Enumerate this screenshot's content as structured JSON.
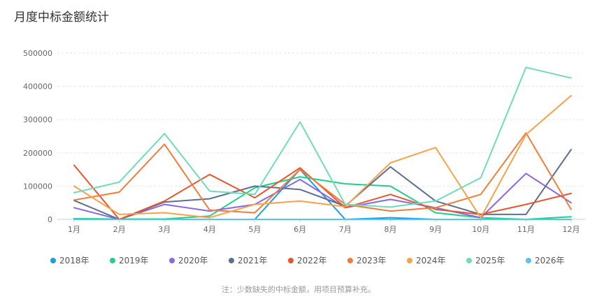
{
  "title": "月度中标金额统计",
  "note": "注：少数缺失的中标金额，用项目预算补充。",
  "chart_data": {
    "type": "line",
    "categories": [
      "1月",
      "2月",
      "3月",
      "4月",
      "5月",
      "6月",
      "7月",
      "8月",
      "9月",
      "10月",
      "11月",
      "12月"
    ],
    "y_ticks": [
      "0",
      "100000",
      "200000",
      "300000",
      "400000",
      "500000"
    ],
    "ylim": [
      0,
      500000
    ],
    "grid": true,
    "legend": "bottom",
    "series": [
      {
        "name": "2018年",
        "color": "#1a9fe0",
        "values": [
          2000,
          0,
          0,
          0,
          0,
          150000,
          0,
          5000,
          0,
          0,
          0,
          0
        ]
      },
      {
        "name": "2019年",
        "color": "#1fcf8c",
        "values": [
          2000,
          1000,
          1000,
          10000,
          95000,
          128000,
          107000,
          100000,
          20000,
          5000,
          0,
          8000
        ]
      },
      {
        "name": "2020年",
        "color": "#8a68e3",
        "values": [
          35000,
          0,
          45000,
          25000,
          45000,
          120000,
          35000,
          60000,
          35000,
          5000,
          138000,
          50000
        ]
      },
      {
        "name": "2021年",
        "color": "#5c6e91",
        "values": [
          57000,
          0,
          52000,
          62000,
          100000,
          90000,
          40000,
          158000,
          55000,
          15000,
          15000,
          210000
        ]
      },
      {
        "name": "2022年",
        "color": "#e8552b",
        "values": [
          163000,
          0,
          55000,
          135000,
          65000,
          155000,
          35000,
          75000,
          30000,
          15000,
          45000,
          78000
        ]
      },
      {
        "name": "2023年",
        "color": "#f07d3c",
        "values": [
          58000,
          82000,
          226000,
          28000,
          20000,
          150000,
          45000,
          25000,
          35000,
          75000,
          260000,
          30000
        ]
      },
      {
        "name": "2024年",
        "color": "#f7a14a",
        "values": [
          100000,
          15000,
          20000,
          5000,
          45000,
          55000,
          38000,
          170000,
          216000,
          5000,
          255000,
          372000
        ]
      },
      {
        "name": "2025年",
        "color": "#6fdcb8",
        "values": [
          80000,
          112000,
          258000,
          85000,
          75000,
          293000,
          45000,
          37000,
          55000,
          125000,
          457000,
          425000
        ]
      },
      {
        "name": "2026年",
        "color": "#5bc2ee",
        "values": [
          0,
          0,
          0,
          0,
          0,
          0,
          0,
          0,
          0,
          0,
          0,
          0
        ]
      }
    ]
  }
}
